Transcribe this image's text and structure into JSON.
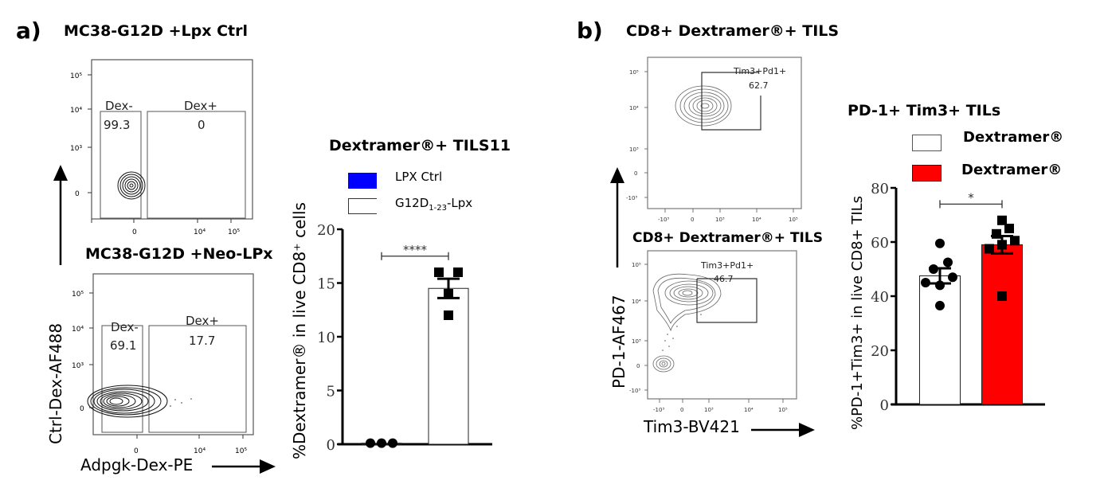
{
  "panel_a": {
    "letter": "a)",
    "flow_top": {
      "title": "MC38-G12D +Lpx Ctrl",
      "gates": [
        {
          "name": "Dex-",
          "value": "99.3"
        },
        {
          "name": "Dex+",
          "value": "0"
        }
      ],
      "y_ticks": [
        "10⁵",
        "10⁴",
        "10³",
        "0"
      ],
      "x_ticks": [
        "0",
        "10⁴",
        "10⁵"
      ]
    },
    "flow_bottom": {
      "title": "MC38-G12D +Neo-LPx",
      "gates": [
        {
          "name": "Dex-",
          "value": "69.1"
        },
        {
          "name": "Dex+",
          "value": "17.7"
        }
      ],
      "y_ticks": [
        "10⁵",
        "10⁴",
        "10³",
        "0"
      ],
      "x_ticks": [
        "0",
        "10⁴",
        "10⁵"
      ]
    },
    "y_axis_label": "Ctrl-Dex-AF488",
    "x_axis_label": "Adpgk-Dex-PE"
  },
  "panel_b": {
    "letter": "b)",
    "flow_top": {
      "title": "CD8+ Dextramer®+ TILS",
      "gate": {
        "name": "Tim3+Pd1+",
        "value": "62.7"
      },
      "y_ticks": [
        "10⁵",
        "10⁴",
        "10³",
        "0",
        "-10³"
      ],
      "x_ticks": [
        "-10³",
        "0",
        "10³",
        "10⁴",
        "10⁵"
      ]
    },
    "flow_bottom": {
      "title": "CD8+ Dextramer®+ TILS",
      "gate": {
        "name": "Tim3+Pd1+",
        "value": "46.7"
      },
      "y_ticks": [
        "10⁵",
        "10⁴",
        "10³",
        "0",
        "-10³"
      ],
      "x_ticks": [
        "-10³",
        "0",
        "10³",
        "10⁴",
        "10⁵"
      ]
    },
    "y_axis_label": "PD-1-AF467",
    "x_axis_label": "Tim3-BV421"
  },
  "chart_data": [
    {
      "type": "bar",
      "title": "Dextramer®+ TILS11",
      "ylabel": "%Dextramer® in live CD8⁺ cells",
      "xlabel": "",
      "ylim": [
        0,
        20
      ],
      "yticks": [
        "0",
        "5",
        "10",
        "15",
        "20"
      ],
      "legend": {
        "placement": "top",
        "entries": [
          {
            "label": "LPX Ctrl",
            "color": "#0000ff"
          },
          {
            "label_main": "G12D",
            "label_sub": "1-23",
            "label_suffix": "-Lpx",
            "color": "#ffffff"
          }
        ]
      },
      "categories": [
        "LPX Ctrl",
        "G12D1-23-Lpx"
      ],
      "series": [
        {
          "name": "LPX Ctrl",
          "mean": 0.1,
          "sem": 0.0,
          "color": "#0000ff",
          "marker": "circle",
          "points": [
            0.1,
            0.1,
            0.1
          ]
        },
        {
          "name": "G12D1-23-Lpx",
          "mean": 14.5,
          "sem": 0.9,
          "color": "#ffffff",
          "marker": "square",
          "points": [
            16.0,
            16.0,
            14.0,
            12.0
          ]
        }
      ],
      "significance": {
        "label": "****",
        "between": [
          0,
          1
        ],
        "y": 17.5
      }
    },
    {
      "type": "bar",
      "title": "PD-1+ Tim3+ TILs",
      "ylabel": "%PD-1+Tim3+ in live CD8+ TILs",
      "xlabel": "",
      "ylim": [
        0,
        80
      ],
      "yticks": [
        "0",
        "20",
        "40",
        "60",
        "80"
      ],
      "legend": {
        "placement": "top-right",
        "entries": [
          {
            "label": "Dextramer®",
            "color": "#ffffff"
          },
          {
            "label": "Dextramer®",
            "color": "#ff0000"
          }
        ]
      },
      "categories": [
        "Dextramer® (white)",
        "Dextramer® (red)"
      ],
      "series": [
        {
          "name": "Dextramer®",
          "mean": 47.5,
          "sem": 2.8,
          "color": "#ffffff",
          "marker": "circle",
          "points": [
            59.5,
            52.5,
            50,
            47,
            45,
            44,
            36.5
          ]
        },
        {
          "name": "Dextramer®",
          "mean": 59,
          "sem": 3.2,
          "color": "#ff0000",
          "marker": "square",
          "points": [
            68,
            65,
            63,
            60.5,
            59,
            57.5,
            40
          ]
        }
      ],
      "significance": {
        "label": "*",
        "between": [
          0,
          1
        ],
        "y": 74
      }
    }
  ]
}
